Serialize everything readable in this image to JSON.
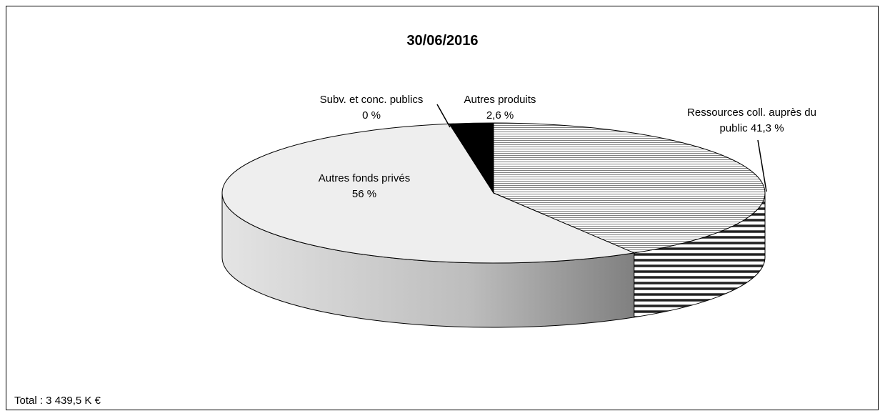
{
  "chart_data": {
    "type": "pie3d",
    "title": "30/06/2016",
    "categories": [
      "Ressources coll. auprès du public",
      "Autres fonds privés",
      "Subv. et conc. publics",
      "Autres produits"
    ],
    "values": [
      41.3,
      56,
      0,
      2.6
    ],
    "value_labels": [
      "41,3 %",
      "56 %",
      "0 %",
      "2,6 %"
    ],
    "colors": [
      "#7f7f7f",
      "#eeeeee",
      "#ffffff",
      "#000000"
    ],
    "hatch": [
      true,
      false,
      false,
      false
    ],
    "annotation": "Total : 3 439,5 K €"
  }
}
